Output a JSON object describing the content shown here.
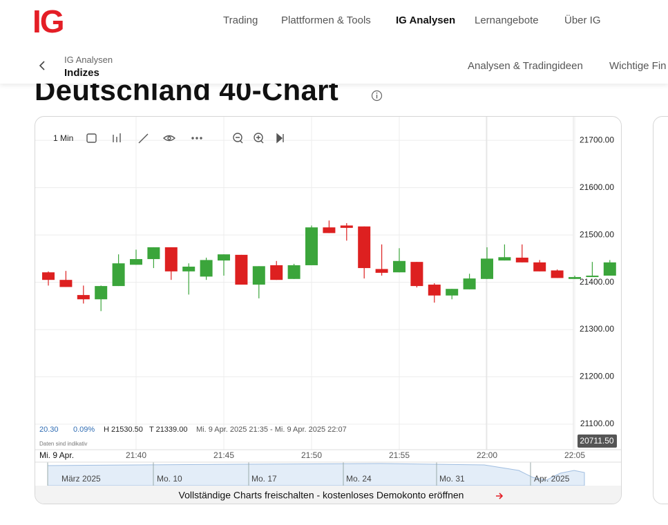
{
  "header": {
    "logo": "IG",
    "nav": [
      "Trading",
      "Plattformen & Tools",
      "IG Analysen",
      "Lernangebote",
      "Über IG"
    ]
  },
  "breadcrumb": {
    "parent": "IG Analysen",
    "current": "Indizes"
  },
  "subnav": [
    "Analysen & Tradingideen",
    "Wichtige Fin"
  ],
  "title": "Deutschland 40-Chart",
  "toolbar": {
    "interval": "1 Min"
  },
  "stats": {
    "change": "20.30",
    "change_pct": "0.09%",
    "high": "H 21530.50",
    "low": "T 21339.00",
    "range": "Mi. 9 Apr. 2025 21:35 - Mi. 9 Apr. 2025 22:07"
  },
  "disclaimer": "Daten sind indikativ",
  "navigator": [
    "März 2025",
    "Mo. 10",
    "Mo. 17",
    "Mo. 24",
    "Mo. 31",
    "Apr. 2025"
  ],
  "cta": "Vollständige Charts freischalten - kostenloses Demokonto eröffnen",
  "chart_data": {
    "type": "candlestick",
    "date_label": "Mi. 9 Apr.",
    "categories": [
      null,
      null,
      null,
      null,
      null,
      "21:40",
      null,
      null,
      null,
      null,
      "21:45",
      null,
      null,
      null,
      null,
      "21:50",
      null,
      null,
      null,
      null,
      "21:55",
      null,
      null,
      null,
      null,
      "22:00",
      null,
      null,
      null,
      null,
      "22:05",
      null,
      null
    ],
    "open": [
      21421,
      21405,
      21373,
      21364,
      21392,
      21437,
      21449,
      21474,
      21423,
      21412,
      21446,
      21458,
      21395,
      21436,
      21407,
      21436,
      21516,
      21520,
      21518,
      21428,
      21421,
      21443,
      21395,
      21372,
      21385,
      21407,
      21446,
      21452,
      21442,
      21425,
      21407,
      21411,
      21414
    ],
    "high": [
      21423,
      21424,
      21393,
      21393,
      21459,
      21469,
      21474,
      21474,
      21440,
      21452,
      21459,
      21458,
      21434,
      21445,
      21439,
      21520,
      21530.5,
      21525,
      21518,
      21480,
      21472,
      21443,
      21398,
      21386,
      21418,
      21474,
      21480,
      21480,
      21447,
      21427,
      21414,
      21443,
      21447
    ],
    "low": [
      21393,
      21390,
      21355,
      21339,
      21392,
      21437,
      21430,
      21405,
      21374,
      21405,
      21414,
      21395,
      21366,
      21405,
      21407,
      21436,
      21504,
      21488,
      21408,
      21414,
      21421,
      21389,
      21357,
      21364,
      21385,
      21407,
      21446,
      21442,
      21423,
      21409,
      21407,
      21411,
      21414
    ],
    "close": [
      21405,
      21390,
      21364,
      21392,
      21440,
      21449,
      21474,
      21423,
      21433,
      21447,
      21459,
      21395,
      21434,
      21405,
      21436,
      21516,
      21504,
      21515,
      21430,
      21420,
      21445,
      21392,
      21372,
      21386,
      21408,
      21450,
      21453,
      21442,
      21423,
      21409,
      21411,
      21414,
      21442
    ],
    "up_color": "#3ba53b",
    "down_color": "#dd2020",
    "ylim": [
      21046,
      21747
    ],
    "yticks": [
      {
        "value": 21100,
        "label": "21100.00"
      },
      {
        "value": 21200,
        "label": "21200.00"
      },
      {
        "value": 21300,
        "label": "21300.00"
      },
      {
        "value": 21400,
        "label": "21400.00"
      },
      {
        "value": 21500,
        "label": "21500.00"
      },
      {
        "value": 21600,
        "label": "21600.00"
      },
      {
        "value": 21700,
        "label": "21700.00"
      }
    ],
    "grid": true,
    "price_badge": "20711.50"
  }
}
